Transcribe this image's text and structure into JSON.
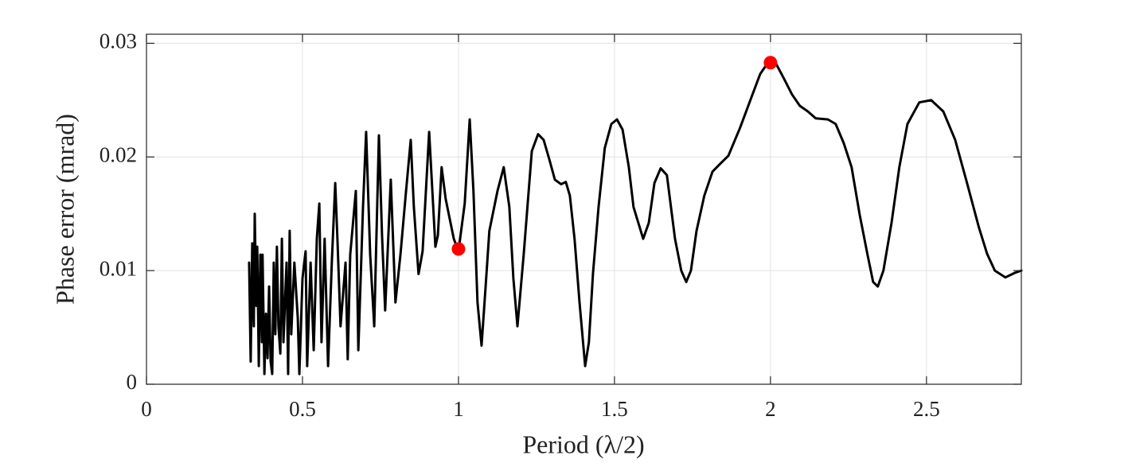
{
  "chart_data": {
    "type": "line",
    "xlabel": "Period (λ/2)",
    "ylabel": "Phase error (mrad)",
    "xlim": [
      0,
      2.804
    ],
    "ylim": [
      0,
      0.0308
    ],
    "xticks": [
      0,
      0.5,
      1,
      1.5,
      2,
      2.5
    ],
    "yticks": [
      0,
      0.01,
      0.02,
      0.03
    ],
    "grid": true,
    "series": [
      {
        "color": "#000000",
        "x": [
          0.329,
          0.334,
          0.339,
          0.344,
          0.347,
          0.352,
          0.355,
          0.36,
          0.365,
          0.37,
          0.372,
          0.378,
          0.383,
          0.388,
          0.393,
          0.398,
          0.403,
          0.408,
          0.413,
          0.418,
          0.423,
          0.429,
          0.434,
          0.439,
          0.449,
          0.454,
          0.459,
          0.464,
          0.474,
          0.485,
          0.49,
          0.5,
          0.51,
          0.515,
          0.526,
          0.536,
          0.546,
          0.554,
          0.561,
          0.571,
          0.582,
          0.594,
          0.605,
          0.612,
          0.622,
          0.638,
          0.645,
          0.653,
          0.671,
          0.679,
          0.694,
          0.704,
          0.717,
          0.73,
          0.745,
          0.755,
          0.765,
          0.783,
          0.798,
          0.814,
          0.832,
          0.847,
          0.857,
          0.872,
          0.885,
          0.906,
          0.926,
          0.934,
          0.946,
          0.959,
          0.985,
          1.0,
          1.02,
          1.036,
          1.048,
          1.061,
          1.074,
          1.087,
          1.099,
          1.125,
          1.145,
          1.163,
          1.176,
          1.189,
          1.209,
          1.235,
          1.255,
          1.273,
          1.291,
          1.309,
          1.329,
          1.344,
          1.357,
          1.372,
          1.388,
          1.406,
          1.418,
          1.431,
          1.449,
          1.469,
          1.49,
          1.508,
          1.526,
          1.546,
          1.561,
          1.592,
          1.61,
          1.628,
          1.648,
          1.668,
          1.694,
          1.714,
          1.73,
          1.745,
          1.763,
          1.788,
          1.814,
          1.839,
          1.865,
          1.903,
          1.941,
          1.967,
          1.992,
          2.018,
          2.043,
          2.069,
          2.094,
          2.12,
          2.145,
          2.184,
          2.209,
          2.235,
          2.26,
          2.286,
          2.311,
          2.329,
          2.344,
          2.362,
          2.388,
          2.413,
          2.439,
          2.477,
          2.515,
          2.554,
          2.592,
          2.63,
          2.668,
          2.694,
          2.719,
          2.753,
          2.783,
          2.804
        ],
        "values": [
          0.0107,
          0.002,
          0.0124,
          0.0051,
          0.015,
          0.0069,
          0.0121,
          0.0016,
          0.0114,
          0.0037,
          0.0114,
          0.0009,
          0.0062,
          0.0023,
          0.0086,
          0.002,
          0.0009,
          0.0107,
          0.0044,
          0.0121,
          0.0051,
          0.0027,
          0.0128,
          0.0037,
          0.0107,
          0.0009,
          0.0135,
          0.0044,
          0.0107,
          0.0058,
          0.0009,
          0.0093,
          0.0117,
          0.0016,
          0.0107,
          0.003,
          0.0128,
          0.0159,
          0.0037,
          0.0128,
          0.0016,
          0.0107,
          0.0177,
          0.0128,
          0.0051,
          0.0107,
          0.0022,
          0.0114,
          0.017,
          0.003,
          0.0156,
          0.0222,
          0.0114,
          0.0051,
          0.0219,
          0.0131,
          0.0065,
          0.018,
          0.0072,
          0.0114,
          0.017,
          0.0215,
          0.0156,
          0.0097,
          0.0117,
          0.0222,
          0.0121,
          0.0131,
          0.0191,
          0.0163,
          0.0128,
          0.0117,
          0.0159,
          0.0233,
          0.017,
          0.0072,
          0.0034,
          0.0086,
          0.0135,
          0.017,
          0.0191,
          0.0156,
          0.0093,
          0.0051,
          0.0114,
          0.0205,
          0.022,
          0.0215,
          0.0198,
          0.018,
          0.0176,
          0.0178,
          0.0166,
          0.0128,
          0.0072,
          0.0016,
          0.0037,
          0.0097,
          0.0156,
          0.0208,
          0.0229,
          0.0233,
          0.0224,
          0.0191,
          0.0156,
          0.0128,
          0.0142,
          0.0177,
          0.019,
          0.0184,
          0.0128,
          0.01,
          0.009,
          0.01,
          0.0135,
          0.0166,
          0.0187,
          0.0194,
          0.0201,
          0.0226,
          0.0254,
          0.0273,
          0.0283,
          0.0282,
          0.0269,
          0.0255,
          0.0245,
          0.024,
          0.0234,
          0.0233,
          0.0229,
          0.0212,
          0.0191,
          0.0149,
          0.0114,
          0.009,
          0.0086,
          0.01,
          0.0142,
          0.0191,
          0.0229,
          0.0248,
          0.025,
          0.024,
          0.0215,
          0.0177,
          0.0138,
          0.0115,
          0.01,
          0.0094,
          0.0098,
          0.01
        ]
      }
    ],
    "points": {
      "color": "#ff0000",
      "x": [
        1.0,
        2.0
      ],
      "values": [
        0.0119,
        0.0283
      ]
    }
  }
}
